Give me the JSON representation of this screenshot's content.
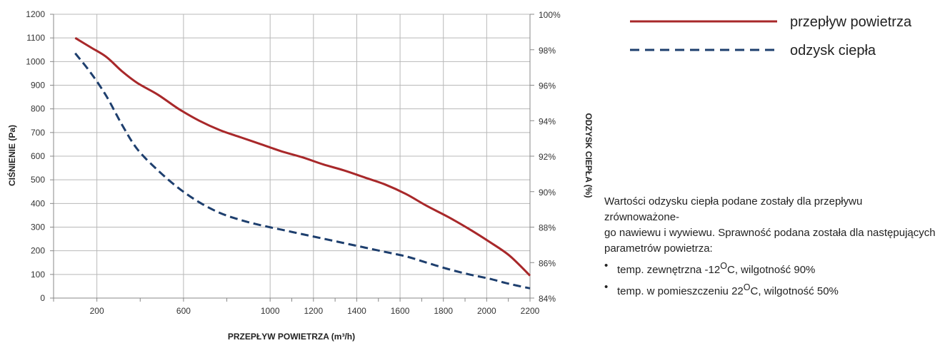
{
  "chart_data": {
    "type": "line",
    "xlabel": "PRZEPŁYW POWIETRZA (m³/h)",
    "ylabel_left": "CIŚNIENIE (Pa)",
    "ylabel_right": "ODZYSK CIEPŁA (%)",
    "xlim": [
      0,
      2200
    ],
    "x_ticks": [
      200,
      600,
      1000,
      1200,
      1400,
      1600,
      1800,
      2000,
      2200
    ],
    "x_tick_labels": [
      "200",
      "600",
      "1000",
      "1200",
      "1400",
      "1600",
      "1800",
      "2000",
      "2200"
    ],
    "ylim_left": [
      0,
      1200
    ],
    "y_ticks_left": [
      0,
      100,
      200,
      300,
      400,
      500,
      600,
      700,
      800,
      900,
      1000,
      1100,
      1200
    ],
    "ylim_right": [
      84,
      100
    ],
    "y_ticks_right": [
      84,
      86,
      88,
      90,
      92,
      94,
      96,
      98,
      100
    ],
    "y_tick_labels_right": [
      "84%",
      "86%",
      "88%",
      "90%",
      "92%",
      "94%",
      "96%",
      "98%",
      "100%"
    ],
    "grid": true,
    "legend_position": "top-right",
    "series": [
      {
        "name": "przepływ powietrza",
        "axis": "left",
        "color": "#a8282a",
        "style": "solid",
        "points": [
          [
            0,
            1100
          ],
          [
            75,
            1060
          ],
          [
            150,
            1020
          ],
          [
            225,
            960
          ],
          [
            300,
            910
          ],
          [
            400,
            860
          ],
          [
            500,
            800
          ],
          [
            600,
            750
          ],
          [
            700,
            710
          ],
          [
            800,
            680
          ],
          [
            900,
            650
          ],
          [
            1000,
            620
          ],
          [
            1100,
            595
          ],
          [
            1200,
            565
          ],
          [
            1300,
            540
          ],
          [
            1400,
            510
          ],
          [
            1500,
            480
          ],
          [
            1600,
            440
          ],
          [
            1700,
            390
          ],
          [
            1800,
            345
          ],
          [
            1900,
            295
          ],
          [
            2000,
            240
          ],
          [
            2100,
            180
          ],
          [
            2200,
            95
          ]
        ]
      },
      {
        "name": "odzysk ciepła",
        "axis": "right",
        "color": "#1e3f6e",
        "style": "dashed",
        "points": [
          [
            0,
            97.8
          ],
          [
            75,
            96.7
          ],
          [
            150,
            95.4
          ],
          [
            225,
            93.8
          ],
          [
            300,
            92.4
          ],
          [
            400,
            91.2
          ],
          [
            500,
            90.2
          ],
          [
            600,
            89.4
          ],
          [
            700,
            88.8
          ],
          [
            800,
            88.4
          ],
          [
            900,
            88.1
          ],
          [
            1000,
            87.85
          ],
          [
            1100,
            87.6
          ],
          [
            1200,
            87.35
          ],
          [
            1300,
            87.1
          ],
          [
            1400,
            86.85
          ],
          [
            1500,
            86.6
          ],
          [
            1600,
            86.35
          ],
          [
            1700,
            86.0
          ],
          [
            1800,
            85.65
          ],
          [
            1900,
            85.35
          ],
          [
            2000,
            85.1
          ],
          [
            2100,
            84.8
          ],
          [
            2200,
            84.55
          ]
        ]
      }
    ]
  },
  "note": {
    "text": "Wartości odzysku ciepła podane zostały dla przepływu zrównoważone-\ngo nawiewu i wywiewu. Sprawność podana została dla następujących\nparametrów powietrza:",
    "bullets": [
      {
        "prefix": "temp. zewnętrzna -12",
        "sup": "O",
        "suffix": "C, wilgotność 90%"
      },
      {
        "prefix": "temp. w pomieszczeniu 22",
        "sup": "O",
        "suffix": "C, wilgotność 50%"
      }
    ]
  }
}
